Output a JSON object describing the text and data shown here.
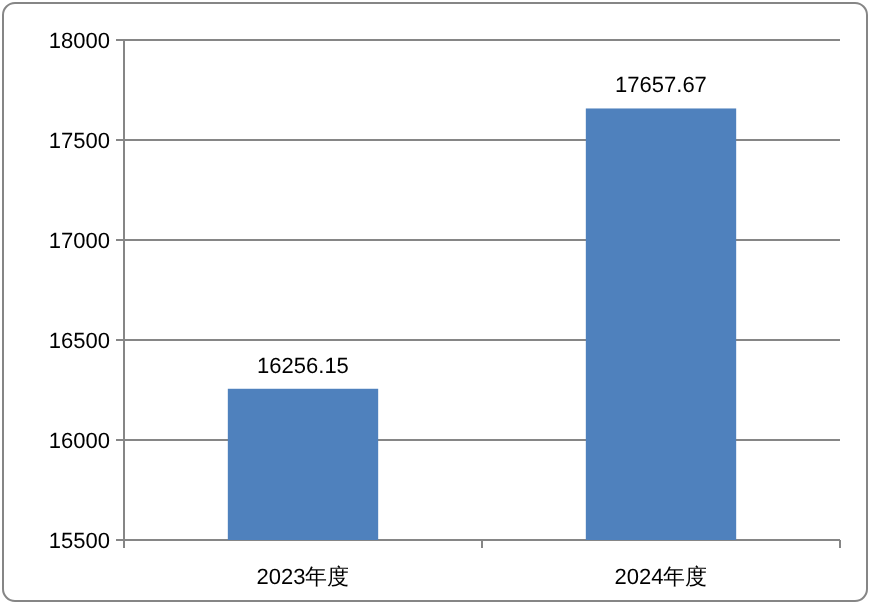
{
  "chart_data": {
    "type": "bar",
    "categories": [
      "2023年度",
      "2024年度"
    ],
    "values": [
      16256.15,
      17657.67
    ],
    "color": "#4f81bd",
    "ylim": [
      15500,
      18000
    ],
    "yticks": [
      15500,
      16000,
      16500,
      17000,
      17500,
      18000
    ],
    "grid": "y",
    "data_labels": true
  }
}
